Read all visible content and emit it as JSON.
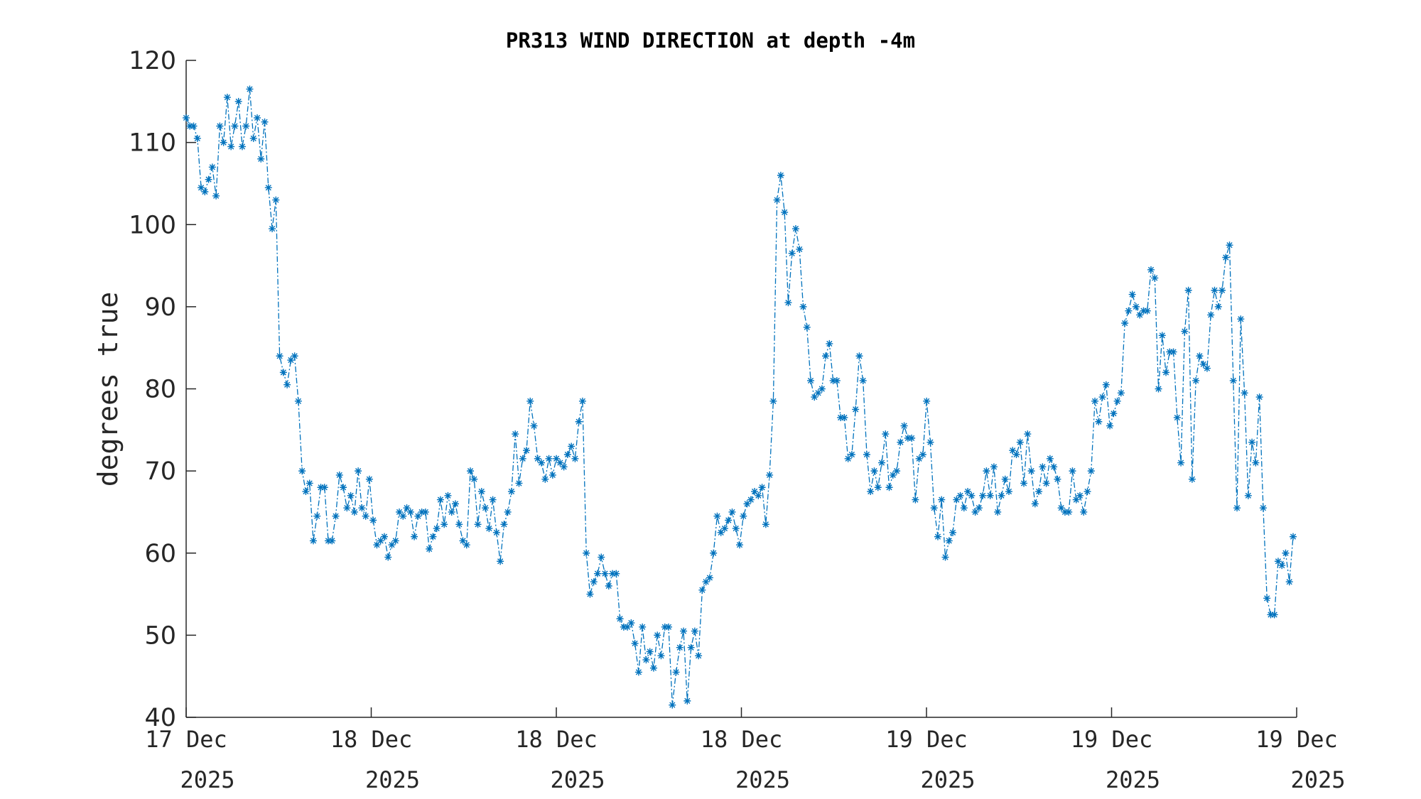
{
  "chart_data": {
    "type": "line",
    "title": "PR313 WIND DIRECTION at depth -4m",
    "xlabel": "",
    "ylabel": "degrees true",
    "ylim": [
      40,
      120
    ],
    "yticks": [
      "40",
      "50",
      "60",
      "70",
      "80",
      "90",
      "100",
      "110",
      "120"
    ],
    "xticks": [
      {
        "line1": "17 Dec",
        "line2": "2025"
      },
      {
        "line1": "18 Dec",
        "line2": "2025"
      },
      {
        "line1": "18 Dec",
        "line2": "2025"
      },
      {
        "line1": "18 Dec",
        "line2": "2025"
      },
      {
        "line1": "19 Dec",
        "line2": "2025"
      },
      {
        "line1": "19 Dec",
        "line2": "2025"
      },
      {
        "line1": "19 Dec",
        "line2": "2025"
      }
    ],
    "marker": "asterisk",
    "line_style": "dash-dot",
    "color": "#0072BD",
    "grid": false,
    "series": [
      {
        "values": [
          113,
          112,
          112,
          110.5,
          104.5,
          104,
          105.5,
          107,
          103.5,
          112,
          110,
          115.5,
          109.5,
          112,
          115,
          109.5,
          112,
          116.5,
          110.5,
          113,
          108,
          112.5,
          104.5,
          99.5,
          103,
          84,
          82,
          80.5,
          83.5,
          84,
          78.5,
          70,
          67.5,
          68.5,
          61.5,
          64.5,
          68,
          68,
          61.5,
          61.5,
          64.5,
          69.5,
          68,
          65.5,
          67,
          65,
          70,
          65.5,
          64.5,
          69,
          64,
          61,
          61.5,
          62,
          59.5,
          61,
          61.5,
          65,
          64.5,
          65.5,
          65,
          62,
          64.5,
          65,
          65,
          60.5,
          62,
          63,
          66.5,
          63.5,
          67,
          65,
          66,
          63.5,
          61.5,
          61,
          70,
          69,
          63.5,
          67.5,
          65.5,
          63,
          66.5,
          62.5,
          59,
          63.5,
          65,
          67.5,
          74.5,
          68.5,
          71.5,
          72.5,
          78.5,
          75.5,
          71.5,
          71,
          69,
          71.5,
          69.5,
          71.5,
          71,
          70.5,
          72,
          73,
          71.5,
          76,
          78.5,
          60,
          55,
          56.5,
          57.5,
          59.5,
          57.5,
          56,
          57.5,
          57.5,
          52,
          51,
          51,
          51.5,
          49,
          45.5,
          51,
          47,
          48,
          46,
          50,
          47.5,
          51,
          51,
          41.5,
          45.5,
          48.5,
          50.5,
          42,
          48.5,
          50.5,
          47.5,
          55.5,
          56.5,
          57,
          60,
          64.5,
          62.5,
          63,
          64,
          65,
          63,
          61,
          64.5,
          66,
          66.5,
          67.5,
          67,
          68,
          63.5,
          69.5,
          78.5,
          103,
          106,
          101.5,
          90.5,
          96.5,
          99.5,
          97,
          90,
          87.5,
          81,
          79,
          79.5,
          80,
          84,
          85.5,
          81,
          81,
          76.5,
          76.5,
          71.5,
          72,
          77.5,
          84,
          81,
          72,
          67.5,
          70,
          68,
          71,
          74.5,
          68,
          69.5,
          70,
          73.5,
          75.5,
          74,
          74,
          66.5,
          71.5,
          72,
          78.5,
          73.5,
          65.5,
          62,
          66.5,
          59.5,
          61.5,
          62.5,
          66.5,
          67,
          65.5,
          67.5,
          67,
          65,
          65.5,
          67,
          70,
          67,
          70.5,
          65,
          67,
          69,
          67.5,
          72.5,
          72,
          73.5,
          68.5,
          74.5,
          70,
          66,
          67.5,
          70.5,
          68.5,
          71.5,
          70.5,
          69,
          65.5,
          65,
          65,
          70,
          66.5,
          67,
          65,
          67.5,
          70,
          78.5,
          76,
          79,
          80.5,
          75.5,
          77,
          78.5,
          79.5,
          88,
          89.5,
          91.5,
          90,
          89,
          89.5,
          89.5,
          94.5,
          93.5,
          80,
          86.5,
          82,
          84.5,
          84.5,
          76.5,
          71,
          87,
          92,
          69,
          81,
          84,
          83,
          82.5,
          89,
          92,
          90,
          92,
          96,
          97.5,
          81,
          65.5,
          88.5,
          79.5,
          67,
          73.5,
          71,
          79,
          65.5,
          54.5,
          52.5,
          52.5,
          59,
          58.5,
          60,
          56.5,
          62
        ]
      }
    ]
  }
}
